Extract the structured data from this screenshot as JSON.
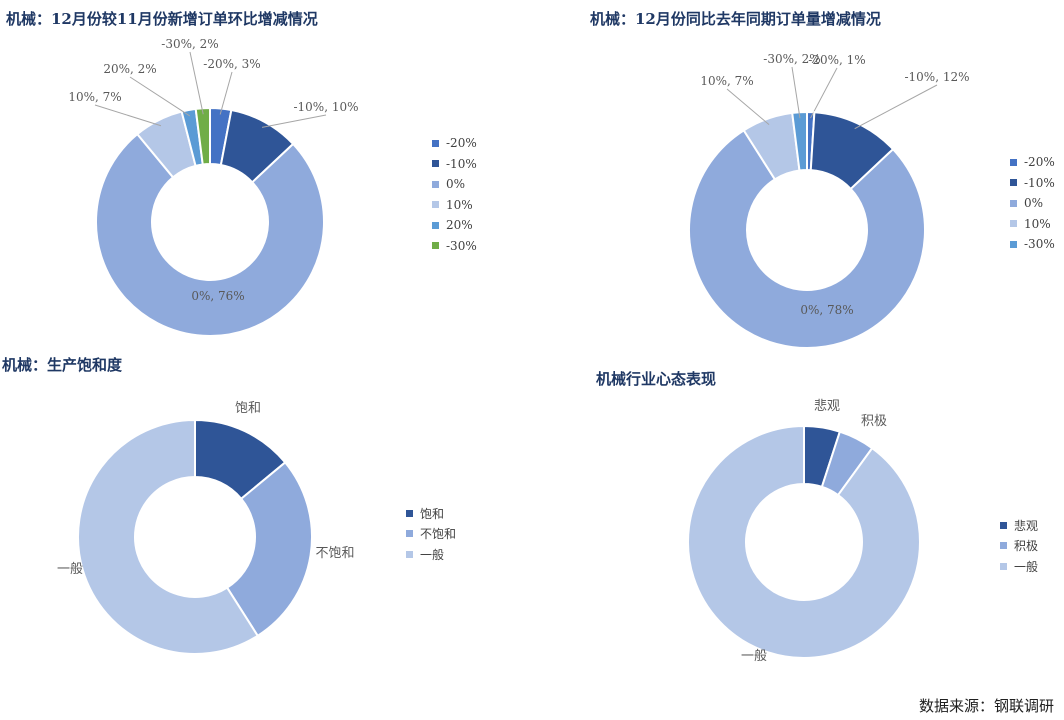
{
  "source_label": "数据来源：钢联调研",
  "colors": {
    "c_m20": "#4472c4",
    "c_m10": "#2f5597",
    "c_0": "#8faadc",
    "c_10": "#b4c7e7",
    "c_20": "#5b9bd5",
    "c_m30": "#70ad47",
    "c_m30b": "#5b9bd5",
    "leader": "#a6a6a6",
    "label": "#595959"
  },
  "chart_data": [
    {
      "id": "mom",
      "type": "pie",
      "title": "机械：12月份较11月份新增订单环比增减情况",
      "slices": [
        {
          "name": "-20%",
          "value": 3,
          "label": "-20%, 3%",
          "color": "#4472c4"
        },
        {
          "name": "-10%",
          "value": 10,
          "label": "-10%, 10%",
          "color": "#2f5597"
        },
        {
          "name": "0%",
          "value": 76,
          "label": "0%, 76%",
          "color": "#8faadc"
        },
        {
          "name": "10%",
          "value": 7,
          "label": "10%, 7%",
          "color": "#b4c7e7"
        },
        {
          "name": "20%",
          "value": 2,
          "label": "20%, 2%",
          "color": "#5b9bd5"
        },
        {
          "name": "-30%",
          "value": 2,
          "label": "-30%, 2%",
          "color": "#70ad47"
        }
      ],
      "legend": [
        "-20%",
        "-10%",
        "0%",
        "10%",
        "20%",
        "-30%"
      ],
      "legend_position": "right"
    },
    {
      "id": "yoy",
      "type": "pie",
      "title": "机械：12月份同比去年同期订单量增减情况",
      "slices": [
        {
          "name": "-20%",
          "value": 1,
          "label": "-20%, 1%",
          "color": "#4472c4"
        },
        {
          "name": "-10%",
          "value": 12,
          "label": "-10%, 12%",
          "color": "#2f5597"
        },
        {
          "name": "0%",
          "value": 78,
          "label": "0%, 78%",
          "color": "#8faadc"
        },
        {
          "name": "10%",
          "value": 7,
          "label": "10%, 7%",
          "color": "#b4c7e7"
        },
        {
          "name": "-30%",
          "value": 2,
          "label": "-30%, 2%",
          "color": "#5b9bd5"
        }
      ],
      "legend": [
        "-20%",
        "-10%",
        "0%",
        "10%",
        "-30%"
      ],
      "legend_position": "right"
    },
    {
      "id": "saturation",
      "type": "pie",
      "title": "机械：生产饱和度",
      "slices": [
        {
          "name": "饱和",
          "value": 14,
          "label": "饱和",
          "color": "#2f5597"
        },
        {
          "name": "不饱和",
          "value": 27,
          "label": "不饱和",
          "color": "#8faadc"
        },
        {
          "name": "一般",
          "value": 59,
          "label": "一般",
          "color": "#b4c7e7"
        }
      ],
      "legend": [
        "饱和",
        "不饱和",
        "一般"
      ],
      "legend_position": "right"
    },
    {
      "id": "sentiment",
      "type": "pie",
      "title": "机械行业心态表现",
      "slices": [
        {
          "name": "悲观",
          "value": 5,
          "label": "悲观",
          "color": "#2f5597"
        },
        {
          "name": "积极",
          "value": 5,
          "label": "积极",
          "color": "#8faadc"
        },
        {
          "name": "一般",
          "value": 90,
          "label": "一般",
          "color": "#b4c7e7"
        }
      ],
      "legend": [
        "悲观",
        "积极",
        "一般"
      ],
      "legend_position": "right"
    }
  ]
}
